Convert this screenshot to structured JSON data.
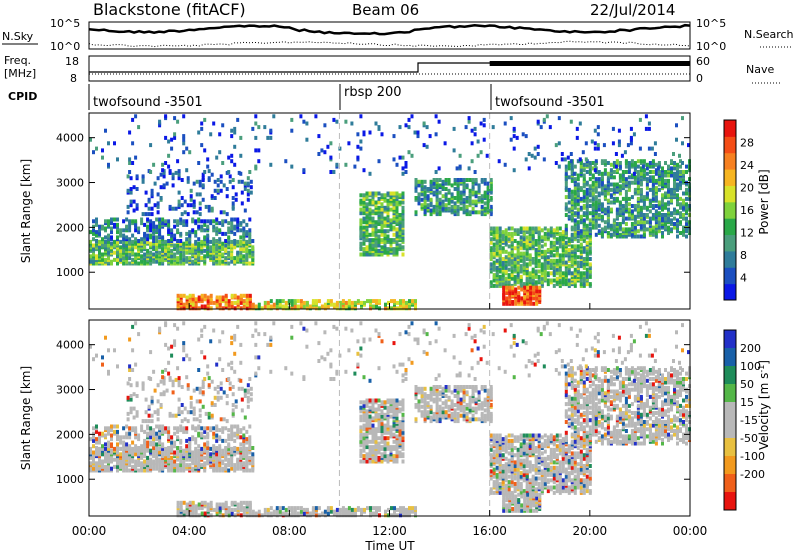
{
  "header": {
    "title": "Blackstone (fitACF)",
    "beam": "Beam 06",
    "date": "22/Jul/2014"
  },
  "panels": {
    "nsky": {
      "left_label": "N.Sky",
      "right_label": "N.Search",
      "left_ticks": [
        "10^5",
        "10^0"
      ],
      "right_ticks": [
        "10^5",
        "10^0"
      ]
    },
    "freq": {
      "left_label_1": "Freq.",
      "left_label_2": "[MHz]",
      "right_label": "Nave",
      "left_ticks": [
        "18",
        "8"
      ],
      "right_ticks": [
        "60",
        "0"
      ]
    },
    "cpid": {
      "label": "CPID",
      "segments": [
        "twofsound -3501",
        "rbsp 200",
        "twofsound -3501"
      ]
    }
  },
  "colors": {
    "power_scale": [
      "#0a18e6",
      "#1b4fc0",
      "#2f7c9a",
      "#4a9e7c",
      "#2aa848",
      "#7fd23c",
      "#d8e22a",
      "#f6b521",
      "#f68020",
      "#f44d16",
      "#e8140e"
    ],
    "velocity_scale": [
      "#2230c8",
      "#1860a8",
      "#1e8c5a",
      "#54b748",
      "#b8b8b8",
      "#b8b8b8",
      "#e8c040",
      "#f29a1e",
      "#f0601a",
      "#e8140e"
    ]
  },
  "chart_data": [
    {
      "type": "heatmap",
      "name": "power",
      "xlabel": "Time UT",
      "ylabel": "Slant Range [km]",
      "x_ticks": [
        "00:00",
        "04:00",
        "08:00",
        "12:00",
        "16:00",
        "20:00",
        "00:00"
      ],
      "xlim_hours": [
        0,
        24
      ],
      "y_ticks": [
        1000,
        2000,
        3000,
        4000
      ],
      "ylim": [
        180,
        4550
      ],
      "colorbar": {
        "label": "Power [dB]",
        "ticks": [
          4,
          8,
          12,
          16,
          20,
          24,
          28
        ],
        "range": [
          0,
          32
        ]
      }
    },
    {
      "type": "heatmap",
      "name": "velocity",
      "xlabel": "Time UT",
      "ylabel": "Slant Range [km]",
      "x_ticks": [
        "00:00",
        "04:00",
        "08:00",
        "12:00",
        "16:00",
        "20:00",
        "00:00"
      ],
      "xlim_hours": [
        0,
        24
      ],
      "y_ticks": [
        1000,
        2000,
        3000,
        4000
      ],
      "ylim": [
        180,
        4550
      ],
      "colorbar": {
        "label": "Velocity [m s",
        "label_sup": "-1",
        "label_end": "]",
        "ticks": [
          "200",
          "100",
          "50",
          "15",
          "-15",
          "-50",
          "-100",
          "-200"
        ]
      }
    }
  ]
}
